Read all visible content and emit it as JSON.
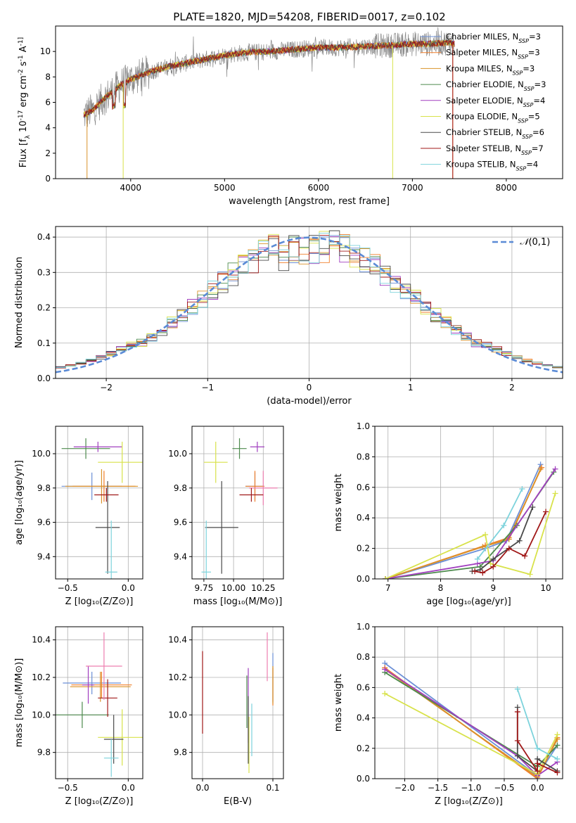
{
  "figure_title": "PLATE=1820, MJD=54208, FIBERID=0017, z=0.102",
  "series_colors": [
    "#6b8fd6",
    "#f07f2a",
    "#d9922a",
    "#4d8a4d",
    "#a13fbf",
    "#d8e24a",
    "#4a4a4a",
    "#a01818",
    "#7dd3dc"
  ],
  "pink_color": "#ee7fb0",
  "spectrum_color": "#888888",
  "reference_color": "#5b8bd6",
  "chart_data": [
    {
      "type": "line",
      "xlabel": "wavelength [Angstrom, rest frame]",
      "ylabel": "Flux [f_λ 10^-17 erg cm^-2 s^-1 A^-1]",
      "xlim": [
        3200,
        8600
      ],
      "ylim": [
        0,
        12
      ],
      "xticks": [
        4000,
        5000,
        6000,
        7000,
        8000
      ],
      "yticks": [
        0,
        2,
        4,
        6,
        8,
        10
      ],
      "grid": false,
      "legend_position": "top-right",
      "legend": [
        "Chabrier MILES, N_SSP=3",
        "Salpeter MILES, N_SSP=3",
        "Kroupa MILES, N_SSP=3",
        "Chabrier ELODIE, N_SSP=3",
        "Salpeter ELODIE, N_SSP=4",
        "Kroupa ELODIE, N_SSP=5",
        "Chabrier STELIB, N_SSP=6",
        "Salpeter STELIB, N_SSP=7",
        "Kroupa STELIB, N_SSP=4"
      ],
      "continuum": {
        "x": [
          3500,
          3600,
          3700,
          3800,
          3900,
          4000,
          4200,
          4400,
          4600,
          4800,
          5000,
          5200,
          5500,
          5800,
          6000,
          6200,
          6500,
          6800,
          7000,
          7200,
          7400,
          7500
        ],
        "y": [
          5.0,
          5.4,
          6.2,
          6.8,
          7.4,
          7.8,
          8.4,
          8.8,
          9.1,
          9.4,
          9.7,
          9.9,
          10.0,
          10.2,
          10.3,
          10.3,
          10.4,
          10.5,
          10.6,
          10.6,
          10.7,
          10.5
        ]
      }
    },
    {
      "type": "line",
      "xlabel": "(data-model)/error",
      "ylabel": "Normed distribution",
      "xlim": [
        -2.5,
        2.5
      ],
      "ylim": [
        0,
        0.43
      ],
      "xticks": [
        -2,
        -1,
        0,
        1,
        2
      ],
      "yticks": [
        0.0,
        0.1,
        0.2,
        0.3,
        0.4
      ],
      "grid": true,
      "legend_position": "top-right",
      "reference_curve": "N(0,1)",
      "bin_width": 0.1
    },
    {
      "type": "scatter",
      "xlabel": "Z [log10(Z/Z_sun)]",
      "ylabel": "age [log10(age/yr)]",
      "xlim": [
        -0.6,
        0.12
      ],
      "ylim": [
        9.27,
        10.16
      ],
      "xticks": [
        -0.5,
        0.0
      ],
      "yticks": [
        9.4,
        9.6,
        9.8,
        10.0
      ],
      "grid": true,
      "points": [
        {
          "x": -0.3,
          "y": 9.81,
          "xerr": 0.25,
          "yerr": 0.08
        },
        {
          "x": -0.2,
          "y": 9.81,
          "xerr": 0.26,
          "yerr": 0.09
        },
        {
          "x": -0.22,
          "y": 9.81,
          "xerr": 0.3,
          "yerr": 0.1
        },
        {
          "x": -0.35,
          "y": 10.03,
          "xerr": 0.2,
          "yerr": 0.06
        },
        {
          "x": -0.25,
          "y": 10.04,
          "xerr": 0.2,
          "yerr": 0.03
        },
        {
          "x": -0.05,
          "y": 9.95,
          "xerr": 0.2,
          "yerr": 0.12
        },
        {
          "x": -0.17,
          "y": 9.57,
          "xerr": 0.1,
          "yerr": 0.27
        },
        {
          "x": -0.18,
          "y": 9.76,
          "xerr": 0.1,
          "yerr": 0.04
        },
        {
          "x": -0.14,
          "y": 9.31,
          "xerr": 0.05,
          "yerr": 0.3
        }
      ]
    },
    {
      "type": "scatter",
      "xlabel": "mass [log10(M/M_sun)]",
      "ylabel": "",
      "xlim": [
        9.65,
        10.42
      ],
      "ylim": [
        9.27,
        10.16
      ],
      "xticks": [
        9.75,
        10.0,
        10.25
      ],
      "xtick_labels": [
        "9.75",
        "10.00",
        "10.25"
      ],
      "yticks": [
        9.4,
        9.6,
        9.8,
        10.0
      ],
      "grid": true,
      "points": [
        {
          "x": 10.18,
          "y": 9.81,
          "xerr": 0.08,
          "yerr": 0.08
        },
        {
          "x": 10.18,
          "y": 9.81,
          "xerr": 0.08,
          "yerr": 0.09
        },
        {
          "x": 10.25,
          "y": 9.8,
          "xerr": 0.12,
          "yerr": 0.1
        },
        {
          "x": 10.05,
          "y": 10.03,
          "xerr": 0.06,
          "yerr": 0.06
        },
        {
          "x": 10.2,
          "y": 10.04,
          "xerr": 0.06,
          "yerr": 0.03
        },
        {
          "x": 9.85,
          "y": 9.95,
          "xerr": 0.1,
          "yerr": 0.12
        },
        {
          "x": 9.9,
          "y": 9.57,
          "xerr": 0.14,
          "yerr": 0.27
        },
        {
          "x": 10.15,
          "y": 9.76,
          "xerr": 0.1,
          "yerr": 0.04
        },
        {
          "x": 9.77,
          "y": 9.31,
          "xerr": 0.04,
          "yerr": 0.3
        }
      ]
    },
    {
      "type": "line",
      "xlabel": "age  [log10(age/yr)]",
      "ylabel": "mass weight",
      "xlim": [
        6.75,
        10.32
      ],
      "ylim": [
        0,
        1
      ],
      "xticks": [
        7,
        8,
        9,
        10
      ],
      "yticks": [
        0.0,
        0.2,
        0.4,
        0.6,
        0.8,
        1.0
      ],
      "grid": true,
      "series": [
        {
          "x": [
            6.95,
            8.85,
            9.25,
            9.9
          ],
          "y": [
            0.0,
            0.2,
            0.25,
            0.75
          ]
        },
        {
          "x": [
            6.95,
            8.85,
            9.3,
            9.92
          ],
          "y": [
            0.0,
            0.22,
            0.27,
            0.73
          ]
        },
        {
          "x": [
            6.95,
            8.8,
            9.3,
            9.9
          ],
          "y": [
            0.0,
            0.21,
            0.26,
            0.72
          ]
        },
        {
          "x": [
            6.95,
            8.75,
            9.45,
            10.15
          ],
          "y": [
            0.0,
            0.08,
            0.35,
            0.7
          ]
        },
        {
          "x": [
            6.95,
            8.7,
            9.0,
            10.18
          ],
          "y": [
            0.0,
            0.1,
            0.12,
            0.72
          ]
        },
        {
          "x": [
            6.95,
            8.85,
            8.95,
            9.7,
            10.18
          ],
          "y": [
            0.0,
            0.29,
            0.1,
            0.03,
            0.56
          ]
        },
        {
          "x": [
            8.6,
            8.75,
            9.0,
            9.5,
            9.75
          ],
          "y": [
            0.05,
            0.06,
            0.13,
            0.25,
            0.47
          ]
        },
        {
          "x": [
            8.65,
            8.8,
            9.0,
            9.3,
            9.6,
            10.0
          ],
          "y": [
            0.05,
            0.04,
            0.08,
            0.2,
            0.15,
            0.44
          ]
        },
        {
          "x": [
            8.7,
            9.2,
            9.55
          ],
          "y": [
            0.13,
            0.35,
            0.59
          ]
        }
      ]
    },
    {
      "type": "scatter",
      "xlabel": "Z [log10(Z/Z_sun)]",
      "ylabel": "mass [log10(M/M_sun)]",
      "xlim": [
        -0.6,
        0.12
      ],
      "ylim": [
        9.66,
        10.47
      ],
      "xticks": [
        -0.5,
        0.0
      ],
      "yticks": [
        9.8,
        10.0,
        10.2,
        10.4
      ],
      "grid": true,
      "points": [
        {
          "x": -0.3,
          "y": 10.17,
          "xerr": 0.24,
          "yerr": 0.06
        },
        {
          "x": -0.22,
          "y": 10.16,
          "xerr": 0.25,
          "yerr": 0.07
        },
        {
          "x": -0.23,
          "y": 10.15,
          "xerr": 0.25,
          "yerr": 0.08
        },
        {
          "x": -0.38,
          "y": 10.0,
          "xerr": 0.22,
          "yerr": 0.07
        },
        {
          "x": -0.33,
          "y": 10.16,
          "xerr": 0.05,
          "yerr": 0.1
        },
        {
          "x": -0.05,
          "y": 9.88,
          "xerr": 0.2,
          "yerr": 0.15
        },
        {
          "x": -0.12,
          "y": 9.87,
          "xerr": 0.08,
          "yerr": 0.13
        },
        {
          "x": -0.17,
          "y": 10.09,
          "xerr": 0.08,
          "yerr": 0.1
        },
        {
          "x": -0.14,
          "y": 9.77,
          "xerr": 0.06,
          "yerr": 0.1
        },
        {
          "x": -0.2,
          "y": 10.26,
          "xerr": 0.15,
          "yerr": 0.18
        }
      ]
    },
    {
      "type": "scatter",
      "xlabel": "E(B-V)",
      "ylabel": "",
      "xlim": [
        -0.015,
        0.115
      ],
      "ylim": [
        9.66,
        10.47
      ],
      "xticks": [
        0.0,
        0.1
      ],
      "yticks": [
        9.8,
        10.0,
        10.2,
        10.4
      ],
      "grid": true,
      "points": [
        {
          "x": 0.1,
          "y": 10.2,
          "yerr": 0.13
        },
        {
          "x": 0.1,
          "y": 10.15,
          "yerr": 0.1
        },
        {
          "x": 0.1,
          "y": 10.16,
          "yerr": 0.1
        },
        {
          "x": 0.063,
          "y": 10.07,
          "yerr": 0.14
        },
        {
          "x": 0.065,
          "y": 10.05,
          "yerr": 0.2
        },
        {
          "x": 0.066,
          "y": 9.84,
          "yerr": 0.15
        },
        {
          "x": 0.065,
          "y": 9.92,
          "yerr": 0.18
        },
        {
          "x": 0.0,
          "y": 10.12,
          "yerr": 0.22
        },
        {
          "x": 0.07,
          "y": 9.92,
          "yerr": 0.14
        },
        {
          "x": 0.092,
          "y": 10.31,
          "yerr": 0.13
        }
      ]
    },
    {
      "type": "line",
      "xlabel": "Z [log10(Z/Z_sun)]",
      "ylabel": "mass weight",
      "xlim": [
        -2.45,
        0.38
      ],
      "ylim": [
        0,
        1
      ],
      "xticks": [
        -2.0,
        -1.5,
        -1.0,
        -0.5,
        0.0
      ],
      "yticks": [
        0.0,
        0.2,
        0.4,
        0.6,
        0.8,
        1.0
      ],
      "grid": true,
      "series": [
        {
          "x": [
            -2.3,
            0.0,
            0.3
          ],
          "y": [
            0.76,
            0.02,
            0.22
          ]
        },
        {
          "x": [
            -2.3,
            0.0,
            0.3
          ],
          "y": [
            0.73,
            0.0,
            0.27
          ]
        },
        {
          "x": [
            -2.3,
            0.0,
            0.3
          ],
          "y": [
            0.72,
            0.01,
            0.26
          ]
        },
        {
          "x": [
            -2.3,
            0.0,
            0.3
          ],
          "y": [
            0.7,
            0.08,
            0.22
          ]
        },
        {
          "x": [
            -2.3,
            -0.3,
            0.0,
            0.3
          ],
          "y": [
            0.72,
            0.15,
            0.02,
            0.11
          ]
        },
        {
          "x": [
            -2.3,
            0.0,
            0.3
          ],
          "y": [
            0.56,
            0.03,
            0.29
          ]
        },
        {
          "x": [
            -0.3,
            -0.3,
            0.0,
            0.0,
            0.3
          ],
          "y": [
            0.47,
            0.15,
            0.05,
            0.13,
            0.05
          ]
        },
        {
          "x": [
            -0.3,
            -0.3,
            0.0,
            0.0,
            0.3
          ],
          "y": [
            0.44,
            0.25,
            0.05,
            0.1,
            0.04
          ]
        },
        {
          "x": [
            -0.3,
            0.0,
            0.3
          ],
          "y": [
            0.59,
            0.2,
            0.13
          ]
        }
      ]
    }
  ]
}
